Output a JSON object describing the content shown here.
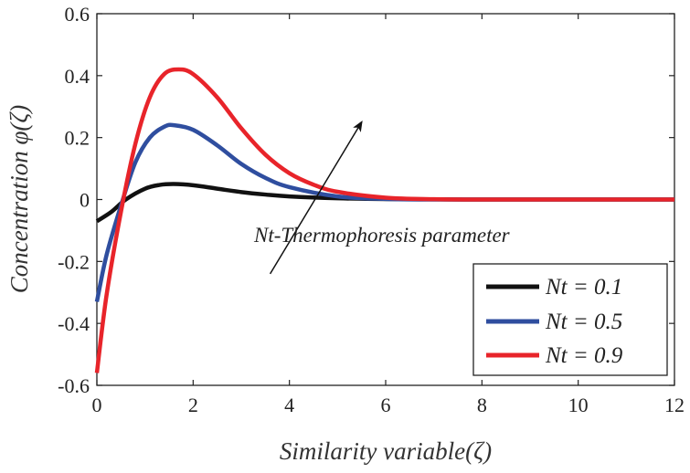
{
  "chart_data": {
    "type": "line",
    "xlabel": "Similarity variable(ζ)",
    "ylabel": "Concentration φ(ζ)",
    "xlim": [
      0,
      12
    ],
    "ylim": [
      -0.6,
      0.6
    ],
    "xticks": [
      0,
      2,
      4,
      6,
      8,
      10,
      12
    ],
    "yticks": [
      0.6,
      0.4,
      0.2,
      0,
      -0.2,
      -0.4,
      -0.6
    ],
    "xtick_labels": [
      "0",
      "2",
      "4",
      "6",
      "8",
      "10",
      "12"
    ],
    "ytick_labels": [
      "0.6",
      "0.4",
      "0.2",
      "0",
      "-0.2",
      "-0.4",
      "-0.6"
    ],
    "grid": false,
    "legend_position": "bottom-right",
    "annotation": {
      "text": "Nt-Thermophoresis parameter",
      "arrow_from": [
        3.6,
        -0.24
      ],
      "arrow_to": [
        5.5,
        0.25
      ]
    },
    "series": [
      {
        "name": "Nt = 0.1",
        "color": "#111111",
        "x": [
          0,
          0.3,
          0.6,
          1.0,
          1.3,
          1.6,
          2.0,
          2.5,
          3.0,
          3.5,
          4.0,
          5.0,
          6.0,
          8.0,
          10.0,
          12.0
        ],
        "y": [
          -0.07,
          -0.04,
          0.0,
          0.035,
          0.047,
          0.05,
          0.046,
          0.035,
          0.024,
          0.016,
          0.01,
          0.004,
          0.0015,
          0.0,
          0.0,
          0.0
        ]
      },
      {
        "name": "Nt = 0.5",
        "color": "#2f4e9f",
        "x": [
          0,
          0.2,
          0.5,
          0.8,
          1.1,
          1.4,
          1.6,
          2.0,
          2.5,
          3.0,
          3.5,
          4.0,
          5.0,
          6.0,
          7.0,
          8.0,
          10.0,
          12.0
        ],
        "y": [
          -0.33,
          -0.18,
          -0.02,
          0.12,
          0.2,
          0.235,
          0.24,
          0.225,
          0.175,
          0.115,
          0.07,
          0.04,
          0.01,
          0.002,
          0.0,
          0.0,
          0.0,
          0.0
        ]
      },
      {
        "name": "Nt = 0.9",
        "color": "#e8242a",
        "x": [
          0,
          0.2,
          0.5,
          0.8,
          1.1,
          1.4,
          1.7,
          2.0,
          2.5,
          3.0,
          3.5,
          4.0,
          4.5,
          5.0,
          6.0,
          7.0,
          8.0,
          10.0,
          12.0
        ],
        "y": [
          -0.56,
          -0.31,
          -0.04,
          0.18,
          0.33,
          0.405,
          0.42,
          0.405,
          0.33,
          0.23,
          0.145,
          0.085,
          0.048,
          0.025,
          0.006,
          0.001,
          0.0,
          0.0,
          0.0
        ]
      }
    ]
  }
}
